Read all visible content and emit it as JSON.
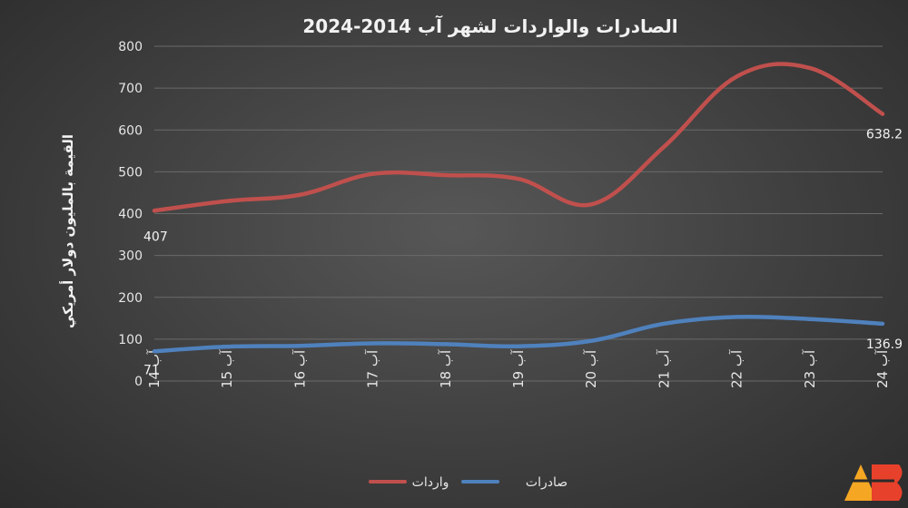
{
  "chart_data": {
    "type": "line",
    "title": "الصادرات والواردات لشهر آب 2014-2024",
    "ylabel": "القيمة بالمليون دولار أمريكي",
    "xlabel": "",
    "ylim": [
      0,
      800
    ],
    "y_ticks": [
      "0",
      "100",
      "200",
      "300",
      "400",
      "500",
      "600",
      "700",
      "800"
    ],
    "grid": true,
    "legend_position": "bottom",
    "categories": [
      "آب 14",
      "آب 15",
      "آب 16",
      "آب 17",
      "آب 18",
      "آب 19",
      "آب 20",
      "آب 21",
      "آب 22",
      "آب 23",
      "آب 24"
    ],
    "series": [
      {
        "name": "واردات",
        "color": "#c0504d",
        "values": [
          407,
          430,
          445,
          495,
          492,
          483,
          422,
          560,
          728,
          748,
          638.2
        ],
        "data_labels": {
          "first": "407",
          "last": "638.2"
        }
      },
      {
        "name": "صادرات",
        "color": "#4f81bd",
        "values": [
          71,
          82,
          84,
          90,
          88,
          83,
          96,
          137,
          153,
          148,
          136.9
        ],
        "data_labels": {
          "first": "71",
          "last": "136.9"
        }
      }
    ]
  },
  "logo": {
    "text": "AB",
    "colors": [
      "#f5a623",
      "#e8412b"
    ]
  }
}
